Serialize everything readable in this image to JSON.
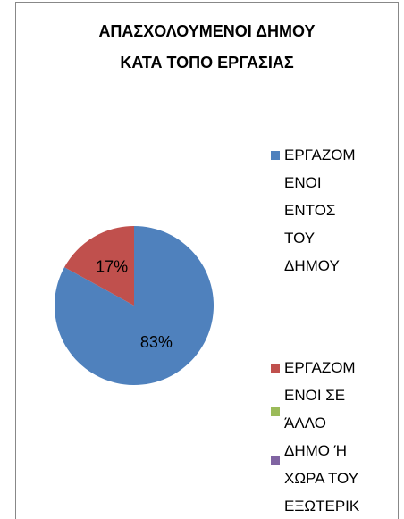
{
  "chart_data": {
    "type": "pie",
    "title": "ΑΠΑΣΧΟΛΟΥΜΕΝΟΙ ΔΗΜΟΥ\nΚΑΤΑ ΤΟΠΟ ΕΡΓΑΣΙΑΣ",
    "categories": [
      "ΕΡΓΑΖΟΜ\nΕΝΟΙ\nΕΝΤΟΣ\nΤΟΥ\nΔΗΜΟΥ",
      "ΕΡΓΑΖΟΜ\nΕΝΟΙ ΣΕ\nΆΛΛΟ\nΔΗΜΟ Ή\nΧΩΡΑ ΤΟΥ\nΕΞΩΤΕΡΙΚ"
    ],
    "values": [
      83,
      17
    ],
    "value_labels": [
      "83%",
      "17%"
    ],
    "colors": [
      "#4f81bd",
      "#c0504d"
    ],
    "legend": "right"
  }
}
